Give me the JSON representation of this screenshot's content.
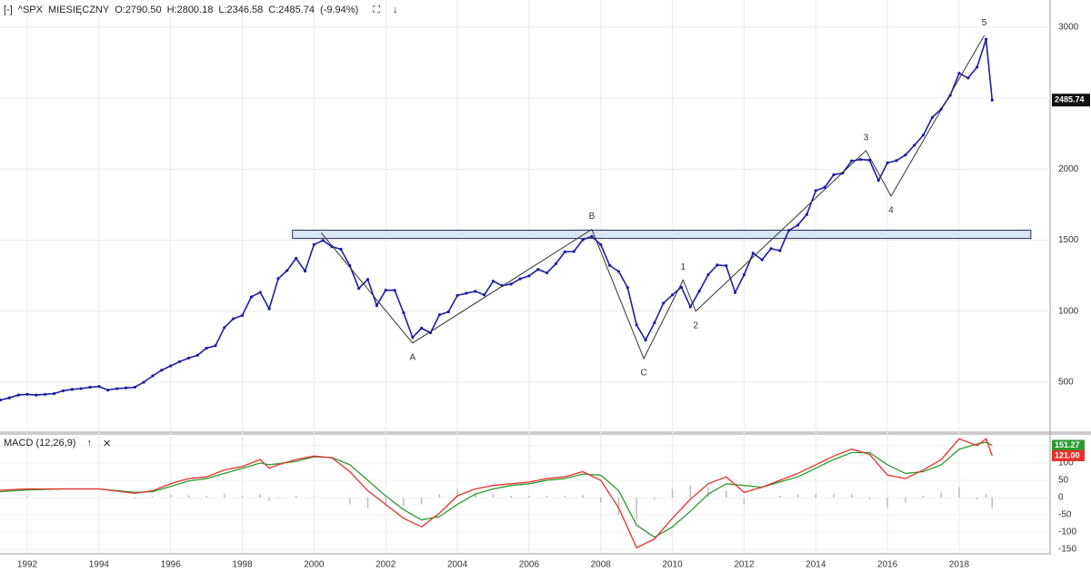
{
  "header": {
    "collapse": "[-]",
    "symbol": "^SPX",
    "interval": "MIESIĘCZNY",
    "open": "O:2790.50",
    "high": "H:2800.18",
    "low": "L:2346.58",
    "close": "C:2485.74",
    "change": "(-9.94%)"
  },
  "chart_data": [
    {
      "type": "line",
      "color": "#1c1ca8",
      "xlim": [
        1991.239,
        2020.537
      ],
      "xticks": [
        1992,
        1994,
        1996,
        1998,
        2000,
        2002,
        2004,
        2006,
        2008,
        2010,
        2012,
        2014,
        2016,
        2018
      ],
      "ylim": [
        155,
        3190
      ],
      "yticks": [
        500,
        1000,
        1500,
        2000,
        2500,
        3000
      ],
      "grid": true,
      "x": [
        1991.25,
        1991.5,
        1991.75,
        1992,
        1992.25,
        1992.5,
        1992.75,
        1993,
        1993.25,
        1993.5,
        1993.75,
        1994,
        1994.25,
        1994.5,
        1994.75,
        1995,
        1995.25,
        1995.5,
        1995.75,
        1996,
        1996.25,
        1996.5,
        1996.75,
        1997,
        1997.25,
        1997.5,
        1997.75,
        1998,
        1998.25,
        1998.5,
        1998.75,
        1999,
        1999.25,
        1999.5,
        1999.75,
        2000,
        2000.25,
        2000.5,
        2000.75,
        2001,
        2001.25,
        2001.5,
        2001.75,
        2002,
        2002.25,
        2002.5,
        2002.75,
        2003,
        2003.25,
        2003.5,
        2003.75,
        2004,
        2004.25,
        2004.5,
        2004.75,
        2005,
        2005.25,
        2005.5,
        2005.75,
        2006,
        2006.25,
        2006.5,
        2006.75,
        2007,
        2007.25,
        2007.5,
        2007.75,
        2008,
        2008.25,
        2008.5,
        2008.75,
        2009,
        2009.25,
        2009.5,
        2009.75,
        2010,
        2010.25,
        2010.5,
        2010.75,
        2011,
        2011.25,
        2011.5,
        2011.75,
        2012,
        2012.25,
        2012.5,
        2012.75,
        2013,
        2013.25,
        2013.5,
        2013.75,
        2014,
        2014.25,
        2014.5,
        2014.75,
        2015,
        2015.25,
        2015.5,
        2015.75,
        2016,
        2016.25,
        2016.5,
        2016.75,
        2017,
        2017.25,
        2017.5,
        2017.75,
        2018,
        2018.25,
        2018.5,
        2018.75,
        2018.92
      ],
      "series": [
        {
          "name": "^SPX",
          "color": "#1c1ca8",
          "values": [
            375,
            390,
            410,
            415,
            410,
            415,
            420,
            440,
            450,
            455,
            465,
            470,
            445,
            455,
            460,
            465,
            500,
            545,
            585,
            615,
            645,
            670,
            690,
            740,
            757,
            885,
            947,
            970,
            1100,
            1133,
            1017,
            1229,
            1286,
            1372,
            1282,
            1469,
            1498,
            1454,
            1436,
            1320,
            1160,
            1224,
            1040,
            1148,
            1147,
            989,
            815,
            880,
            848,
            975,
            995,
            1111,
            1126,
            1140,
            1114,
            1211,
            1180,
            1191,
            1228,
            1248,
            1294,
            1270,
            1335,
            1418,
            1420,
            1503,
            1526,
            1468,
            1322,
            1280,
            1166,
            903,
            797,
            919,
            1057,
            1115,
            1169,
            1031,
            1141,
            1257,
            1325,
            1320,
            1131,
            1257,
            1408,
            1362,
            1440,
            1426,
            1569,
            1606,
            1681,
            1848,
            1872,
            1960,
            1972,
            2058,
            2068,
            2063,
            1920,
            2044,
            2060,
            2099,
            2168,
            2239,
            2363,
            2423,
            2519,
            2674,
            2641,
            2718,
            2914,
            2485.74
          ]
        }
      ],
      "band": {
        "from": 1999.4,
        "to": 2020.0,
        "low": 1512,
        "high": 1570
      },
      "waves": [
        {
          "x": 2000.2,
          "y": 1552
        },
        {
          "label": "A",
          "x": 2002.75,
          "y": 776
        },
        {
          "label": "B",
          "x": 2007.75,
          "y": 1576
        },
        {
          "label": "C",
          "x": 2009.2,
          "y": 667
        },
        {
          "label": "1",
          "x": 2010.3,
          "y": 1219
        },
        {
          "label": "2",
          "x": 2010.65,
          "y": 1000
        },
        {
          "label": "3",
          "x": 2015.4,
          "y": 2130
        },
        {
          "label": "4",
          "x": 2016.1,
          "y": 1810
        },
        {
          "label": "5",
          "x": 2018.7,
          "y": 2940
        }
      ]
    },
    {
      "type": "macd",
      "title": "MACD (12,26,9)",
      "xlim": [
        1991.239,
        2020.537
      ],
      "ylim": [
        -163,
        184
      ],
      "yticks": [
        150,
        100,
        50,
        0,
        -50,
        -100,
        -150
      ],
      "x": [
        1991,
        1992,
        1993,
        1994,
        1995,
        1995.5,
        1996,
        1996.5,
        1997,
        1997.5,
        1998,
        1998.5,
        1998.75,
        1999,
        1999.5,
        2000,
        2000.5,
        2001,
        2001.5,
        2002,
        2002.5,
        2003,
        2003.5,
        2004,
        2004.5,
        2005,
        2005.5,
        2006,
        2006.5,
        2007,
        2007.5,
        2008,
        2008.5,
        2009,
        2009.5,
        2010,
        2010.5,
        2011,
        2011.5,
        2012,
        2012.5,
        2013,
        2013.5,
        2014,
        2014.5,
        2015,
        2015.5,
        2016,
        2016.5,
        2017,
        2017.5,
        2018,
        2018.5,
        2018.75,
        2018.92
      ],
      "series": [
        {
          "name": "MACD",
          "color": "#e8302a",
          "last_value_label": "121.00",
          "values": [
            20,
            25,
            25,
            25,
            12,
            20,
            40,
            55,
            60,
            80,
            90,
            110,
            85,
            95,
            110,
            120,
            115,
            75,
            20,
            -20,
            -60,
            -85,
            -45,
            5,
            25,
            35,
            40,
            45,
            55,
            60,
            75,
            50,
            -30,
            -145,
            -120,
            -60,
            -5,
            40,
            60,
            15,
            30,
            50,
            70,
            95,
            120,
            140,
            125,
            65,
            55,
            80,
            110,
            170,
            150,
            170,
            121
          ]
        },
        {
          "name": "Signal",
          "color": "#2e9a2e",
          "values": [
            15,
            22,
            25,
            25,
            15,
            17,
            32,
            48,
            55,
            70,
            85,
            100,
            95,
            98,
            105,
            118,
            116,
            95,
            50,
            5,
            -35,
            -65,
            -55,
            -20,
            10,
            25,
            35,
            40,
            50,
            55,
            68,
            65,
            20,
            -80,
            -115,
            -85,
            -40,
            10,
            40,
            35,
            30,
            45,
            60,
            85,
            110,
            130,
            130,
            95,
            70,
            75,
            95,
            140,
            155,
            160,
            151.27
          ]
        },
        {
          "name": "Histogram",
          "color": "#bdbdbd",
          "values": [
            5,
            3,
            0,
            0,
            -3,
            3,
            8,
            7,
            5,
            10,
            5,
            10,
            -10,
            -3,
            5,
            2,
            -1,
            -20,
            -30,
            -25,
            -25,
            -20,
            10,
            25,
            15,
            10,
            5,
            5,
            5,
            5,
            7,
            -15,
            -50,
            -65,
            -5,
            25,
            35,
            30,
            20,
            -20,
            0,
            5,
            10,
            10,
            10,
            10,
            -5,
            -30,
            -15,
            5,
            15,
            30,
            -5,
            10,
            -30.27
          ]
        }
      ]
    }
  ]
}
